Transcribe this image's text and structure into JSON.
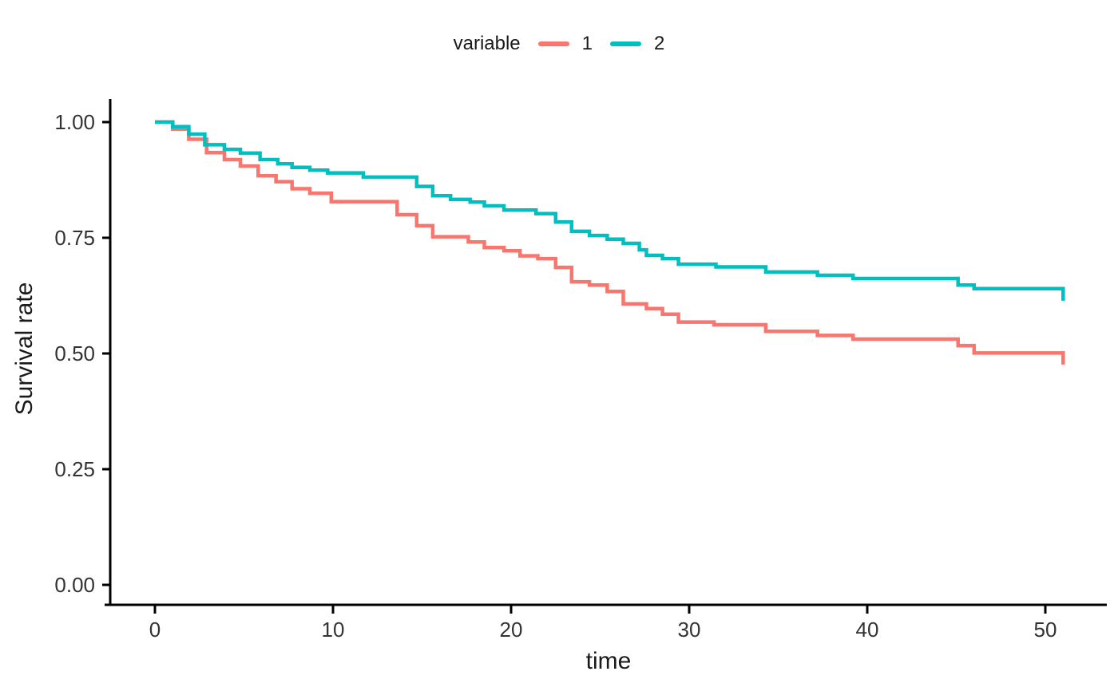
{
  "figure": {
    "background": "#FFFFFF"
  },
  "legend": {
    "title": "variable",
    "items": [
      {
        "label": "1",
        "color": "#F8766D"
      },
      {
        "label": "2",
        "color": "#00BFC0"
      }
    ]
  },
  "axes": {
    "x": {
      "title": "time",
      "tick_values": [
        0,
        10,
        20,
        30,
        40,
        50
      ],
      "tick_labels": [
        "0",
        "10",
        "20",
        "30",
        "40",
        "50"
      ]
    },
    "y": {
      "title": "Survival rate",
      "tick_values": [
        0,
        0.25,
        0.5,
        0.75,
        1
      ],
      "tick_labels": [
        "0.00",
        "0.25",
        "0.50",
        "0.75",
        "1.00"
      ]
    }
  },
  "style": {
    "axis_color": "#000000",
    "tick_text_color": "#333333",
    "title_text_color": "#1A1A1A",
    "series_1_color": "#F8766D",
    "series_2_color": "#00BFC0"
  },
  "chart_data": {
    "type": "line",
    "step_interpolation": "step-after (Kaplan-Meier survival curves)",
    "title": "",
    "xlabel": "time",
    "ylabel": "Survival rate",
    "xlim": [
      0,
      53
    ],
    "ylim": [
      0,
      1.05
    ],
    "grid": false,
    "legend": {
      "title": "variable",
      "position": "top-center",
      "entries": [
        "1",
        "2"
      ]
    },
    "x_ticks": {
      "values": [
        0,
        10,
        20,
        30,
        40,
        50
      ],
      "labels": [
        "0",
        "10",
        "20",
        "30",
        "40",
        "50"
      ]
    },
    "y_ticks": {
      "values": [
        0,
        0.25,
        0.5,
        0.75,
        1
      ],
      "labels": [
        "0.00",
        "0.25",
        "0.50",
        "0.75",
        "1.00"
      ]
    },
    "series": [
      {
        "name": "1",
        "color": "#F8766D",
        "points": [
          [
            0,
            1.0
          ],
          [
            1.0,
            0.985
          ],
          [
            1.9,
            0.963
          ],
          [
            2.9,
            0.934
          ],
          [
            3.9,
            0.919
          ],
          [
            4.8,
            0.905
          ],
          [
            5.8,
            0.884
          ],
          [
            6.8,
            0.871
          ],
          [
            7.7,
            0.856
          ],
          [
            8.7,
            0.846
          ],
          [
            9.9,
            0.828
          ],
          [
            13.6,
            0.8
          ],
          [
            14.7,
            0.776
          ],
          [
            15.6,
            0.752
          ],
          [
            17.6,
            0.741
          ],
          [
            18.5,
            0.729
          ],
          [
            19.6,
            0.722
          ],
          [
            20.5,
            0.711
          ],
          [
            21.5,
            0.705
          ],
          [
            22.5,
            0.686
          ],
          [
            23.4,
            0.655
          ],
          [
            24.4,
            0.648
          ],
          [
            25.4,
            0.634
          ],
          [
            26.3,
            0.607
          ],
          [
            27.6,
            0.597
          ],
          [
            28.5,
            0.585
          ],
          [
            29.4,
            0.568
          ],
          [
            31.4,
            0.562
          ],
          [
            34.3,
            0.548
          ],
          [
            37.2,
            0.539
          ],
          [
            39.2,
            0.531
          ],
          [
            45.1,
            0.517
          ],
          [
            46.0,
            0.501
          ],
          [
            51.0,
            0.476
          ]
        ]
      },
      {
        "name": "2",
        "color": "#00BFC0",
        "points": [
          [
            0,
            1.0
          ],
          [
            1.0,
            0.99
          ],
          [
            1.9,
            0.974
          ],
          [
            2.8,
            0.951
          ],
          [
            3.9,
            0.941
          ],
          [
            4.8,
            0.933
          ],
          [
            5.9,
            0.919
          ],
          [
            6.9,
            0.91
          ],
          [
            7.7,
            0.902
          ],
          [
            8.7,
            0.896
          ],
          [
            9.7,
            0.89
          ],
          [
            11.7,
            0.881
          ],
          [
            14.7,
            0.861
          ],
          [
            15.6,
            0.841
          ],
          [
            16.6,
            0.833
          ],
          [
            17.7,
            0.827
          ],
          [
            18.5,
            0.819
          ],
          [
            19.6,
            0.81
          ],
          [
            21.4,
            0.802
          ],
          [
            22.5,
            0.784
          ],
          [
            23.4,
            0.764
          ],
          [
            24.4,
            0.755
          ],
          [
            25.4,
            0.747
          ],
          [
            26.3,
            0.738
          ],
          [
            27.2,
            0.724
          ],
          [
            27.6,
            0.712
          ],
          [
            28.5,
            0.705
          ],
          [
            29.4,
            0.693
          ],
          [
            31.5,
            0.687
          ],
          [
            34.3,
            0.676
          ],
          [
            37.2,
            0.669
          ],
          [
            39.2,
            0.662
          ],
          [
            45.1,
            0.648
          ],
          [
            46.0,
            0.64
          ],
          [
            51.0,
            0.614
          ]
        ]
      }
    ]
  }
}
